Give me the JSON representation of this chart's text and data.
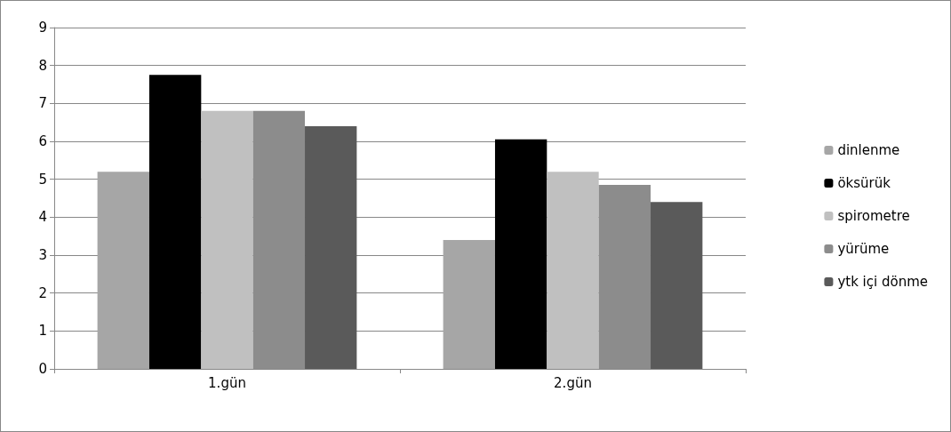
{
  "chart_data": {
    "type": "bar",
    "categories": [
      "1.gün",
      "2.gün"
    ],
    "series": [
      {
        "name": "dinlenme",
        "color": "#a6a6a6",
        "values": [
          5.2,
          3.4
        ]
      },
      {
        "name": "öksürük",
        "color": "#000000",
        "values": [
          7.75,
          6.05
        ]
      },
      {
        "name": "spirometre",
        "color": "#c0c0c0",
        "values": [
          6.8,
          5.2
        ]
      },
      {
        "name": "yürüme",
        "color": "#8c8c8c",
        "values": [
          6.8,
          4.85
        ]
      },
      {
        "name": "ytk içi dönme",
        "color": "#5a5a5a",
        "values": [
          6.4,
          4.4
        ]
      }
    ],
    "ylim": [
      0,
      9
    ],
    "yticks": [
      0,
      1,
      2,
      3,
      4,
      5,
      6,
      7,
      8,
      9
    ],
    "grid": "y",
    "legend": "right"
  }
}
